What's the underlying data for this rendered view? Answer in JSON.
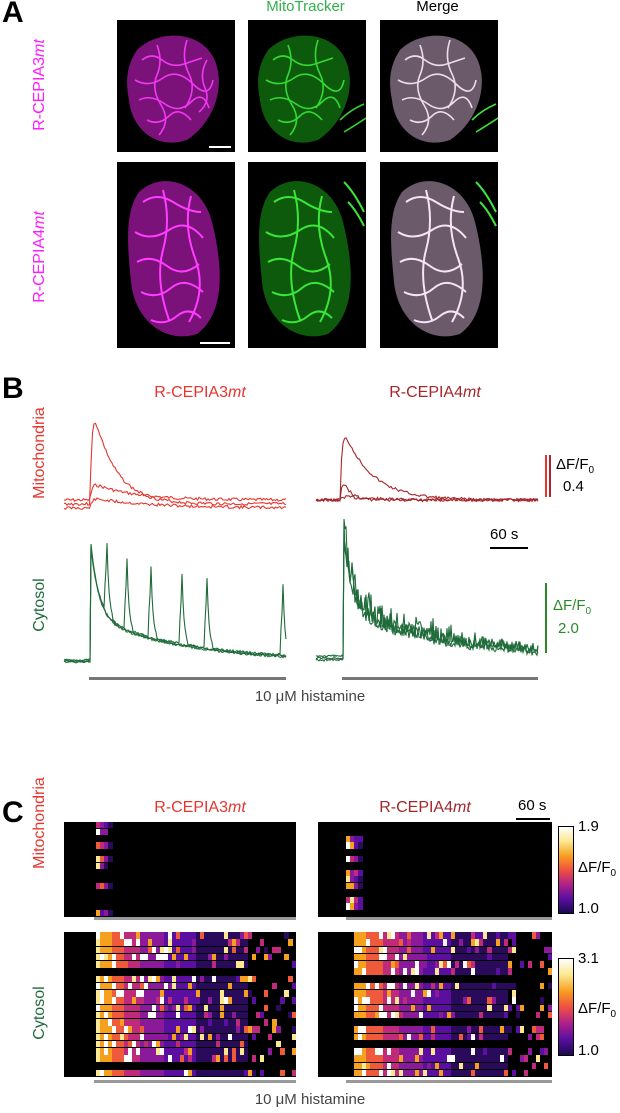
{
  "figure": {
    "panels": [
      "A",
      "B",
      "C"
    ],
    "panel_a": {
      "column_headers": [
        "MitoTracker",
        "Merge"
      ],
      "row_labels": [
        {
          "prefix": "R-CEPIA3",
          "suffix": "mt"
        },
        {
          "prefix": "R-CEPIA4",
          "suffix": "mt"
        }
      ],
      "colors": {
        "magenta": "#ff1cff",
        "green": "#2fd12f",
        "merge": "#f4dcf4"
      }
    },
    "panel_b": {
      "titles": [
        {
          "prefix": "R-CEPIA3",
          "suffix": "mt",
          "color": "#e8352d"
        },
        {
          "prefix": "R-CEPIA4",
          "suffix": "mt",
          "color": "#a5262b"
        }
      ],
      "row_labels": [
        "Mitochondria",
        "Cytosol"
      ],
      "scale_mito": {
        "line1": "ΔF/F",
        "sub": "0",
        "line2": "0.4"
      },
      "scale_time": "60 s",
      "scale_cyto": {
        "line1": "ΔF/F",
        "sub": "0",
        "line2": "2.0"
      },
      "stimulus": "10 μM histamine",
      "colors": {
        "mito_left": "#e8352d",
        "mito_right": "#a5262b",
        "cyto": "#1f6b3a"
      }
    },
    "panel_c": {
      "titles": [
        {
          "prefix": "R-CEPIA3",
          "suffix": "mt",
          "color": "#e8352d"
        },
        {
          "prefix": "R-CEPIA4",
          "suffix": "mt",
          "color": "#a5262b"
        }
      ],
      "row_labels": [
        "Mitochondria",
        "Cytosol"
      ],
      "scale_time": "60 s",
      "cbar_mito": {
        "max": "1.9",
        "min": "1.0",
        "label": "ΔF/F",
        "sub": "0"
      },
      "cbar_cyto": {
        "max": "3.1",
        "min": "1.0",
        "label": "ΔF/F",
        "sub": "0"
      },
      "stimulus": "10 μM histamine"
    }
  }
}
